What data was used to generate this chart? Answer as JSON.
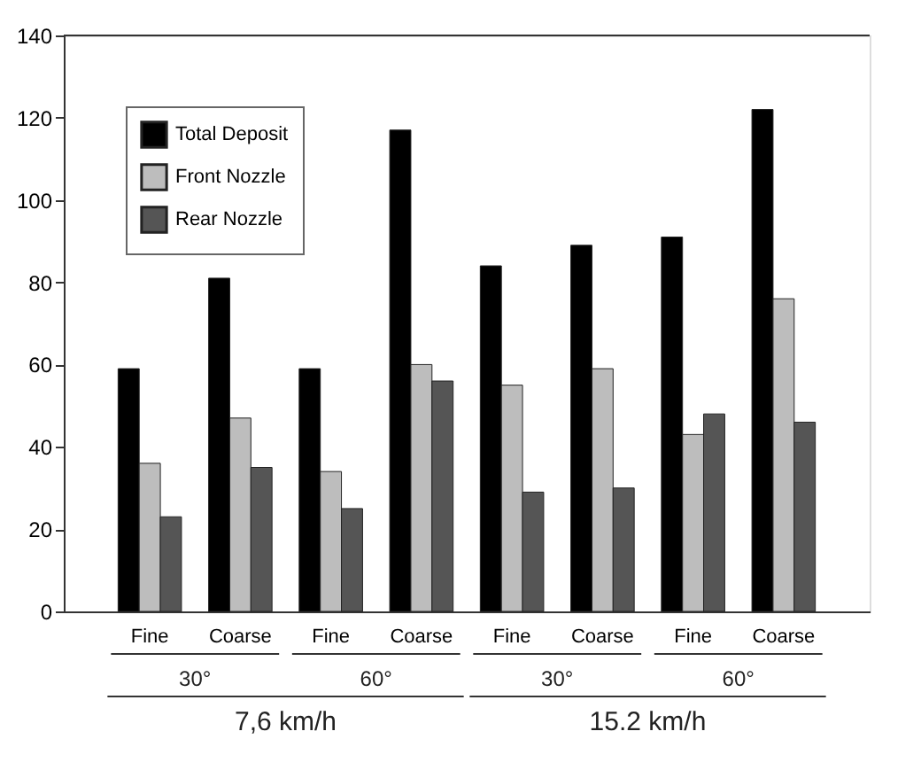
{
  "chart_data": {
    "type": "bar",
    "categories": [
      "Fine",
      "Coarse",
      "Fine",
      "Coarse",
      "Fine",
      "Coarse",
      "Fine",
      "Coarse"
    ],
    "series": [
      {
        "name": "Total Deposit",
        "color": "#000000",
        "values": [
          59,
          81,
          59,
          117,
          84,
          89,
          91,
          122
        ]
      },
      {
        "name": "Front Nozzle",
        "color": "#bdbdbd",
        "values": [
          36,
          47,
          34,
          60,
          55,
          59,
          43,
          76
        ]
      },
      {
        "name": "Rear Nozzle",
        "color": "#555555",
        "values": [
          23,
          35,
          25,
          56,
          29,
          30,
          48,
          46
        ]
      }
    ],
    "ylim": [
      0,
      140
    ],
    "yticks": [
      0,
      20,
      40,
      60,
      80,
      100,
      120,
      140
    ],
    "grid": false,
    "legend": "top left",
    "annotations": [
      "30°",
      "60°",
      "30°",
      "60°",
      "7,6 km/h",
      "15.2 km/h"
    ]
  }
}
